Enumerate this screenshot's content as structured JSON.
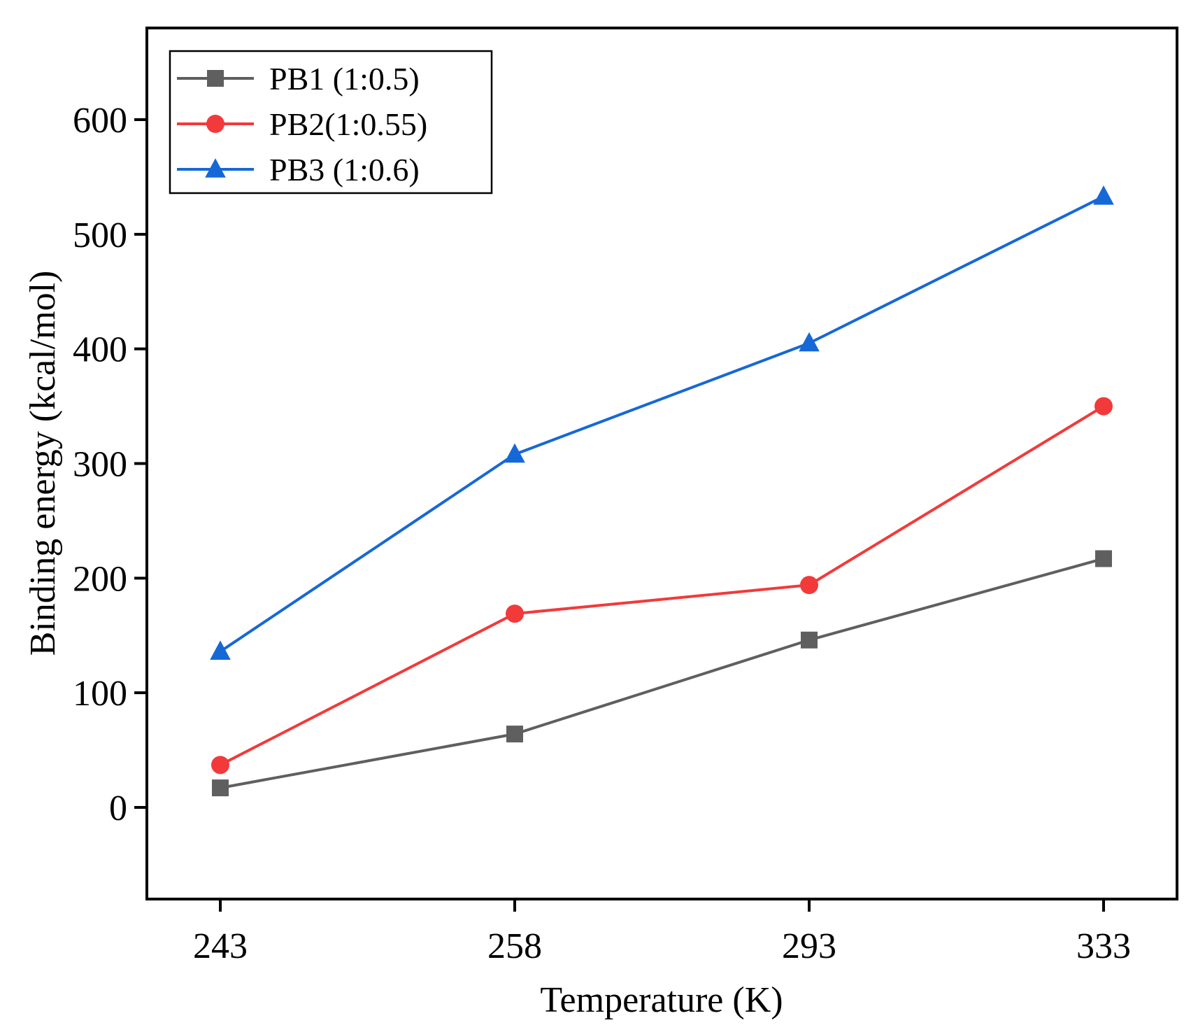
{
  "chart_data": {
    "type": "line",
    "title": "",
    "xlabel": "Temperature (K)",
    "ylabel": "Binding energy (kcal/mol)",
    "categories": [
      "243",
      "258",
      "293",
      "333"
    ],
    "ylim": [
      -80,
      680
    ],
    "yticks": [
      0,
      100,
      200,
      300,
      400,
      500,
      600
    ],
    "grid": false,
    "legend_position": "top-left",
    "series": [
      {
        "name": "PB1 (1:0.5)",
        "color": "#5f5f5f",
        "marker": "square",
        "values": [
          17,
          64,
          146,
          217
        ]
      },
      {
        "name": "PB2(1:0.55)",
        "color": "#f23a3a",
        "marker": "circle",
        "values": [
          37,
          169,
          194,
          350
        ]
      },
      {
        "name": "PB3 (1:0.6)",
        "color": "#1668d6",
        "marker": "triangle",
        "values": [
          136,
          308,
          405,
          533
        ]
      }
    ]
  }
}
